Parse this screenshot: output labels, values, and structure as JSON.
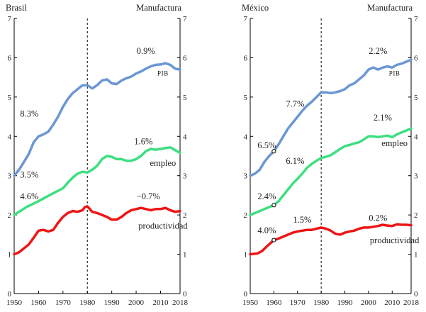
{
  "colors": {
    "pib": "#6b97d3",
    "empleo": "#3ddf80",
    "productividad": "#ee1414",
    "axis": "#000000"
  },
  "chart_data": [
    {
      "type": "line",
      "country": "Brasil",
      "sector": "Manufactura",
      "xlim": [
        1950,
        2018
      ],
      "ylim": [
        0,
        7
      ],
      "x_ticks": [
        1950,
        1960,
        1970,
        1980,
        1990,
        2000,
        2010,
        2018
      ],
      "y_ticks": [
        0,
        1,
        2,
        3,
        4,
        5,
        6,
        7
      ],
      "vline_x": 1980,
      "series": [
        {
          "name": "PIB",
          "color_key": "pib",
          "points": [
            [
              1950,
              3.0
            ],
            [
              1952,
              3.15
            ],
            [
              1954,
              3.35
            ],
            [
              1956,
              3.55
            ],
            [
              1958,
              3.85
            ],
            [
              1960,
              4.0
            ],
            [
              1962,
              4.05
            ],
            [
              1964,
              4.12
            ],
            [
              1966,
              4.3
            ],
            [
              1968,
              4.5
            ],
            [
              1970,
              4.75
            ],
            [
              1972,
              4.95
            ],
            [
              1974,
              5.1
            ],
            [
              1976,
              5.2
            ],
            [
              1978,
              5.3
            ],
            [
              1980,
              5.3
            ],
            [
              1982,
              5.22
            ],
            [
              1984,
              5.3
            ],
            [
              1986,
              5.42
            ],
            [
              1988,
              5.45
            ],
            [
              1990,
              5.35
            ],
            [
              1992,
              5.33
            ],
            [
              1994,
              5.42
            ],
            [
              1996,
              5.48
            ],
            [
              1998,
              5.52
            ],
            [
              2000,
              5.6
            ],
            [
              2002,
              5.65
            ],
            [
              2004,
              5.72
            ],
            [
              2006,
              5.78
            ],
            [
              2008,
              5.82
            ],
            [
              2010,
              5.83
            ],
            [
              2012,
              5.86
            ],
            [
              2014,
              5.82
            ],
            [
              2016,
              5.72
            ],
            [
              2018,
              5.7
            ]
          ]
        },
        {
          "name": "empleo",
          "color_key": "empleo",
          "points": [
            [
              1950,
              2.0
            ],
            [
              1955,
              2.2
            ],
            [
              1960,
              2.35
            ],
            [
              1965,
              2.52
            ],
            [
              1970,
              2.68
            ],
            [
              1972,
              2.82
            ],
            [
              1974,
              2.95
            ],
            [
              1976,
              3.05
            ],
            [
              1978,
              3.1
            ],
            [
              1980,
              3.08
            ],
            [
              1982,
              3.15
            ],
            [
              1984,
              3.25
            ],
            [
              1986,
              3.42
            ],
            [
              1988,
              3.5
            ],
            [
              1990,
              3.48
            ],
            [
              1992,
              3.42
            ],
            [
              1994,
              3.42
            ],
            [
              1996,
              3.38
            ],
            [
              1998,
              3.38
            ],
            [
              2000,
              3.42
            ],
            [
              2002,
              3.5
            ],
            [
              2004,
              3.62
            ],
            [
              2006,
              3.68
            ],
            [
              2008,
              3.66
            ],
            [
              2010,
              3.68
            ],
            [
              2012,
              3.7
            ],
            [
              2014,
              3.72
            ],
            [
              2016,
              3.65
            ],
            [
              2018,
              3.58
            ]
          ]
        },
        {
          "name": "productividad",
          "color_key": "productividad",
          "points": [
            [
              1950,
              1.0
            ],
            [
              1952,
              1.05
            ],
            [
              1954,
              1.15
            ],
            [
              1956,
              1.25
            ],
            [
              1958,
              1.42
            ],
            [
              1960,
              1.6
            ],
            [
              1962,
              1.62
            ],
            [
              1964,
              1.58
            ],
            [
              1966,
              1.62
            ],
            [
              1968,
              1.8
            ],
            [
              1970,
              1.95
            ],
            [
              1972,
              2.05
            ],
            [
              1974,
              2.1
            ],
            [
              1976,
              2.08
            ],
            [
              1978,
              2.12
            ],
            [
              1979,
              2.2
            ],
            [
              1980,
              2.22
            ],
            [
              1981,
              2.15
            ],
            [
              1982,
              2.08
            ],
            [
              1984,
              2.05
            ],
            [
              1986,
              2.0
            ],
            [
              1988,
              1.95
            ],
            [
              1990,
              1.88
            ],
            [
              1992,
              1.88
            ],
            [
              1994,
              1.95
            ],
            [
              1996,
              2.05
            ],
            [
              1998,
              2.12
            ],
            [
              2000,
              2.15
            ],
            [
              2002,
              2.18
            ],
            [
              2004,
              2.15
            ],
            [
              2006,
              2.12
            ],
            [
              2008,
              2.15
            ],
            [
              2010,
              2.15
            ],
            [
              2012,
              2.18
            ],
            [
              2014,
              2.12
            ],
            [
              2016,
              2.08
            ],
            [
              2018,
              2.1
            ]
          ]
        }
      ],
      "annotations": [
        {
          "text": "8.3%",
          "x": 1960,
          "y": 4.5,
          "anchor": "end"
        },
        {
          "text": "0.9%",
          "x": 2004,
          "y": 6.1,
          "anchor": "middle"
        },
        {
          "text": "PIB",
          "x": 2011,
          "y": 5.55,
          "anchor": "middle",
          "small_caps": true
        },
        {
          "text": "3.5%",
          "x": 1960,
          "y": 2.95,
          "anchor": "end"
        },
        {
          "text": "1.6%",
          "x": 2003,
          "y": 3.8,
          "anchor": "middle"
        },
        {
          "text": "empleo",
          "x": 2011,
          "y": 3.25,
          "anchor": "middle"
        },
        {
          "text": "4.6%",
          "x": 1960,
          "y": 2.4,
          "anchor": "end"
        },
        {
          "text": "−0.7%",
          "x": 2005,
          "y": 2.4,
          "anchor": "middle"
        },
        {
          "text": "productividad",
          "x": 2011,
          "y": 1.65,
          "anchor": "middle"
        }
      ],
      "markers": []
    },
    {
      "type": "line",
      "country": "México",
      "sector": "Manufactura",
      "xlim": [
        1950,
        2018
      ],
      "ylim": [
        0,
        7
      ],
      "x_ticks": [
        1950,
        1960,
        1970,
        1980,
        1990,
        2000,
        2010,
        2018
      ],
      "y_ticks": [
        0,
        1,
        2,
        3,
        4,
        5,
        6,
        7
      ],
      "vline_x": 1980,
      "series": [
        {
          "name": "PIB",
          "color_key": "pib",
          "points": [
            [
              1950,
              3.0
            ],
            [
              1952,
              3.05
            ],
            [
              1954,
              3.15
            ],
            [
              1956,
              3.35
            ],
            [
              1958,
              3.5
            ],
            [
              1960,
              3.62
            ],
            [
              1962,
              3.8
            ],
            [
              1964,
              4.0
            ],
            [
              1966,
              4.2
            ],
            [
              1968,
              4.35
            ],
            [
              1970,
              4.5
            ],
            [
              1972,
              4.65
            ],
            [
              1974,
              4.78
            ],
            [
              1976,
              4.88
            ],
            [
              1978,
              5.0
            ],
            [
              1980,
              5.12
            ],
            [
              1982,
              5.12
            ],
            [
              1984,
              5.1
            ],
            [
              1986,
              5.12
            ],
            [
              1988,
              5.15
            ],
            [
              1990,
              5.2
            ],
            [
              1992,
              5.3
            ],
            [
              1994,
              5.35
            ],
            [
              1996,
              5.45
            ],
            [
              1998,
              5.55
            ],
            [
              2000,
              5.7
            ],
            [
              2002,
              5.75
            ],
            [
              2004,
              5.7
            ],
            [
              2006,
              5.75
            ],
            [
              2008,
              5.78
            ],
            [
              2010,
              5.75
            ],
            [
              2012,
              5.82
            ],
            [
              2014,
              5.85
            ],
            [
              2016,
              5.9
            ],
            [
              2018,
              5.95
            ]
          ]
        },
        {
          "name": "empleo",
          "color_key": "empleo",
          "points": [
            [
              1950,
              2.0
            ],
            [
              1952,
              2.05
            ],
            [
              1954,
              2.1
            ],
            [
              1956,
              2.15
            ],
            [
              1958,
              2.2
            ],
            [
              1960,
              2.25
            ],
            [
              1962,
              2.35
            ],
            [
              1964,
              2.5
            ],
            [
              1966,
              2.65
            ],
            [
              1968,
              2.8
            ],
            [
              1970,
              2.92
            ],
            [
              1972,
              3.05
            ],
            [
              1974,
              3.2
            ],
            [
              1976,
              3.3
            ],
            [
              1978,
              3.38
            ],
            [
              1980,
              3.45
            ],
            [
              1982,
              3.48
            ],
            [
              1984,
              3.52
            ],
            [
              1986,
              3.6
            ],
            [
              1988,
              3.68
            ],
            [
              1990,
              3.75
            ],
            [
              1992,
              3.78
            ],
            [
              1994,
              3.82
            ],
            [
              1996,
              3.85
            ],
            [
              1998,
              3.92
            ],
            [
              2000,
              4.0
            ],
            [
              2002,
              4.0
            ],
            [
              2004,
              3.98
            ],
            [
              2006,
              4.0
            ],
            [
              2008,
              4.02
            ],
            [
              2010,
              3.98
            ],
            [
              2012,
              4.05
            ],
            [
              2014,
              4.1
            ],
            [
              2016,
              4.15
            ],
            [
              2018,
              4.2
            ]
          ]
        },
        {
          "name": "productividad",
          "color_key": "productividad",
          "points": [
            [
              1950,
              1.0
            ],
            [
              1953,
              1.02
            ],
            [
              1955,
              1.08
            ],
            [
              1957,
              1.2
            ],
            [
              1960,
              1.36
            ],
            [
              1962,
              1.4
            ],
            [
              1964,
              1.45
            ],
            [
              1966,
              1.5
            ],
            [
              1968,
              1.55
            ],
            [
              1970,
              1.58
            ],
            [
              1972,
              1.6
            ],
            [
              1974,
              1.62
            ],
            [
              1976,
              1.62
            ],
            [
              1978,
              1.65
            ],
            [
              1980,
              1.68
            ],
            [
              1982,
              1.65
            ],
            [
              1984,
              1.6
            ],
            [
              1986,
              1.52
            ],
            [
              1988,
              1.5
            ],
            [
              1990,
              1.55
            ],
            [
              1992,
              1.58
            ],
            [
              1994,
              1.6
            ],
            [
              1996,
              1.65
            ],
            [
              1998,
              1.68
            ],
            [
              2000,
              1.68
            ],
            [
              2002,
              1.7
            ],
            [
              2004,
              1.72
            ],
            [
              2006,
              1.75
            ],
            [
              2008,
              1.73
            ],
            [
              2010,
              1.72
            ],
            [
              2012,
              1.76
            ],
            [
              2014,
              1.75
            ],
            [
              2016,
              1.75
            ],
            [
              2018,
              1.74
            ]
          ]
        }
      ],
      "annotations": [
        {
          "text": "6.5%",
          "x": 1957,
          "y": 3.7,
          "anchor": "middle"
        },
        {
          "text": "7.7%",
          "x": 1969,
          "y": 4.75,
          "anchor": "middle"
        },
        {
          "text": "2.2%",
          "x": 2004,
          "y": 6.1,
          "anchor": "middle"
        },
        {
          "text": "PIB",
          "x": 2011,
          "y": 5.55,
          "anchor": "middle",
          "small_caps": true
        },
        {
          "text": "6.1%",
          "x": 1969,
          "y": 3.3,
          "anchor": "middle"
        },
        {
          "text": "2.1%",
          "x": 2006,
          "y": 4.4,
          "anchor": "middle"
        },
        {
          "text": "empleo",
          "x": 2011,
          "y": 3.75,
          "anchor": "middle"
        },
        {
          "text": "2.4%",
          "x": 1957,
          "y": 2.4,
          "anchor": "middle"
        },
        {
          "text": "4.0%",
          "x": 1957,
          "y": 1.53,
          "anchor": "middle"
        },
        {
          "text": "1.5%",
          "x": 1972,
          "y": 1.8,
          "anchor": "middle"
        },
        {
          "text": "0.2%",
          "x": 2004,
          "y": 1.85,
          "anchor": "middle"
        },
        {
          "text": "productividad",
          "x": 2011,
          "y": 1.28,
          "anchor": "middle"
        }
      ],
      "markers": [
        {
          "x": 1960,
          "y": 3.62
        },
        {
          "x": 1960,
          "y": 2.25
        },
        {
          "x": 1960,
          "y": 1.36
        }
      ]
    }
  ]
}
